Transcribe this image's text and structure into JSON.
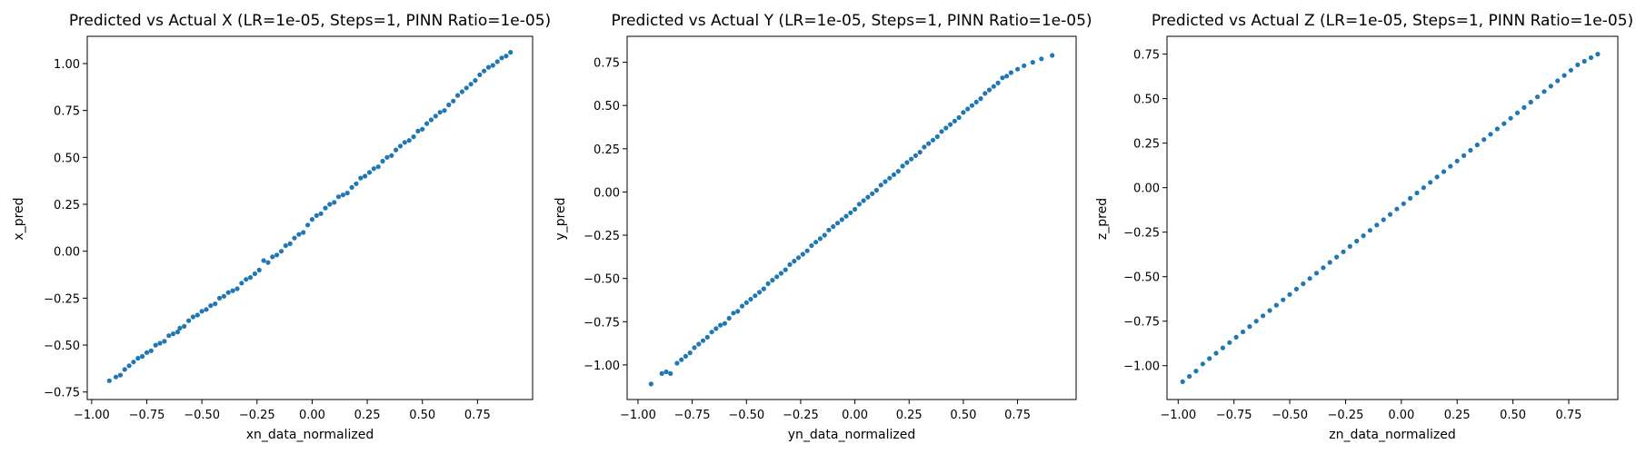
{
  "figure": {
    "panels": [
      {
        "title": "Predicted vs Actual X (LR=1e-05, Steps=1, PINN Ratio=1e-05)",
        "xlabel": "xn_data_normalized",
        "ylabel": "x_pred",
        "xlim": [
          -1.02,
          1.0
        ],
        "ylim": [
          -0.79,
          1.145
        ],
        "xticks": [
          -1.0,
          -0.75,
          -0.5,
          -0.25,
          0.0,
          0.25,
          0.5,
          0.75
        ],
        "yticks": [
          -0.75,
          -0.5,
          -0.25,
          0.0,
          0.25,
          0.5,
          0.75,
          1.0
        ]
      },
      {
        "title": "Predicted vs Actual Y (LR=1e-05, Steps=1, PINN Ratio=1e-05)",
        "xlabel": "yn_data_normalized",
        "ylabel": "y_pred",
        "xlim": [
          -1.05,
          1.02
        ],
        "ylim": [
          -1.2,
          0.9
        ],
        "xticks": [
          -1.0,
          -0.75,
          -0.5,
          -0.25,
          0.0,
          0.25,
          0.5,
          0.75
        ],
        "yticks": [
          -1.0,
          -0.75,
          -0.5,
          -0.25,
          0.0,
          0.25,
          0.5,
          0.75
        ]
      },
      {
        "title": "Predicted vs Actual Z (LR=1e-05, Steps=1, PINN Ratio=1e-05)",
        "xlabel": "zn_data_normalized",
        "ylabel": "z_pred",
        "xlim": [
          -1.05,
          0.97
        ],
        "ylim": [
          -1.19,
          0.85
        ],
        "xticks": [
          -1.0,
          -0.75,
          -0.5,
          -0.25,
          0.0,
          0.25,
          0.5,
          0.75
        ],
        "yticks": [
          -1.0,
          -0.75,
          -0.5,
          -0.25,
          0.0,
          0.25,
          0.5,
          0.75
        ]
      }
    ]
  },
  "chart_data": [
    {
      "type": "scatter",
      "title": "Predicted vs Actual X (LR=1e-05, Steps=1, PINN Ratio=1e-05)",
      "xlabel": "xn_data_normalized",
      "ylabel": "x_pred",
      "xlim": [
        -1.02,
        1.0
      ],
      "ylim": [
        -0.79,
        1.145
      ],
      "grid": false,
      "color": "#1f77b4",
      "points": [
        [
          -0.92,
          -0.69
        ],
        [
          -0.89,
          -0.67
        ],
        [
          -0.87,
          -0.66
        ],
        [
          -0.85,
          -0.63
        ],
        [
          -0.83,
          -0.61
        ],
        [
          -0.81,
          -0.59
        ],
        [
          -0.79,
          -0.57
        ],
        [
          -0.77,
          -0.56
        ],
        [
          -0.75,
          -0.54
        ],
        [
          -0.73,
          -0.53
        ],
        [
          -0.71,
          -0.5
        ],
        [
          -0.69,
          -0.49
        ],
        [
          -0.67,
          -0.48
        ],
        [
          -0.65,
          -0.45
        ],
        [
          -0.63,
          -0.44
        ],
        [
          -0.61,
          -0.43
        ],
        [
          -0.6,
          -0.41
        ],
        [
          -0.58,
          -0.4
        ],
        [
          -0.56,
          -0.37
        ],
        [
          -0.54,
          -0.35
        ],
        [
          -0.52,
          -0.34
        ],
        [
          -0.5,
          -0.32
        ],
        [
          -0.48,
          -0.31
        ],
        [
          -0.46,
          -0.29
        ],
        [
          -0.44,
          -0.28
        ],
        [
          -0.42,
          -0.25
        ],
        [
          -0.4,
          -0.24
        ],
        [
          -0.38,
          -0.22
        ],
        [
          -0.36,
          -0.21
        ],
        [
          -0.34,
          -0.2
        ],
        [
          -0.32,
          -0.17
        ],
        [
          -0.3,
          -0.15
        ],
        [
          -0.28,
          -0.14
        ],
        [
          -0.26,
          -0.12
        ],
        [
          -0.24,
          -0.1
        ],
        [
          -0.22,
          -0.05
        ],
        [
          -0.2,
          -0.06
        ],
        [
          -0.18,
          -0.03
        ],
        [
          -0.16,
          -0.02
        ],
        [
          -0.14,
          0.0
        ],
        [
          -0.12,
          0.03
        ],
        [
          -0.1,
          0.04
        ],
        [
          -0.08,
          0.07
        ],
        [
          -0.06,
          0.09
        ],
        [
          -0.04,
          0.1
        ],
        [
          -0.02,
          0.14
        ],
        [
          0.0,
          0.17
        ],
        [
          0.02,
          0.19
        ],
        [
          0.04,
          0.2
        ],
        [
          0.06,
          0.23
        ],
        [
          0.08,
          0.25
        ],
        [
          0.1,
          0.26
        ],
        [
          0.12,
          0.29
        ],
        [
          0.14,
          0.3
        ],
        [
          0.16,
          0.31
        ],
        [
          0.18,
          0.34
        ],
        [
          0.2,
          0.36
        ],
        [
          0.22,
          0.39
        ],
        [
          0.24,
          0.4
        ],
        [
          0.26,
          0.42
        ],
        [
          0.28,
          0.44
        ],
        [
          0.3,
          0.45
        ],
        [
          0.32,
          0.48
        ],
        [
          0.34,
          0.5
        ],
        [
          0.36,
          0.51
        ],
        [
          0.38,
          0.54
        ],
        [
          0.4,
          0.56
        ],
        [
          0.42,
          0.58
        ],
        [
          0.44,
          0.59
        ],
        [
          0.46,
          0.61
        ],
        [
          0.48,
          0.64
        ],
        [
          0.5,
          0.65
        ],
        [
          0.52,
          0.68
        ],
        [
          0.54,
          0.7
        ],
        [
          0.56,
          0.72
        ],
        [
          0.58,
          0.74
        ],
        [
          0.6,
          0.75
        ],
        [
          0.62,
          0.78
        ],
        [
          0.64,
          0.8
        ],
        [
          0.66,
          0.83
        ],
        [
          0.68,
          0.85
        ],
        [
          0.7,
          0.87
        ],
        [
          0.72,
          0.89
        ],
        [
          0.74,
          0.91
        ],
        [
          0.76,
          0.94
        ],
        [
          0.78,
          0.96
        ],
        [
          0.8,
          0.98
        ],
        [
          0.82,
          0.99
        ],
        [
          0.84,
          1.01
        ],
        [
          0.86,
          1.03
        ],
        [
          0.88,
          1.04
        ],
        [
          0.9,
          1.06
        ]
      ]
    },
    {
      "type": "scatter",
      "title": "Predicted vs Actual Y (LR=1e-05, Steps=1, PINN Ratio=1e-05)",
      "xlabel": "yn_data_normalized",
      "ylabel": "y_pred",
      "xlim": [
        -1.05,
        1.02
      ],
      "ylim": [
        -1.2,
        0.9
      ],
      "grid": false,
      "color": "#1f77b4",
      "points": [
        [
          -0.94,
          -1.11
        ],
        [
          -0.89,
          -1.05
        ],
        [
          -0.87,
          -1.04
        ],
        [
          -0.85,
          -1.05
        ],
        [
          -0.82,
          -0.99
        ],
        [
          -0.8,
          -0.97
        ],
        [
          -0.78,
          -0.95
        ],
        [
          -0.76,
          -0.93
        ],
        [
          -0.74,
          -0.9
        ],
        [
          -0.72,
          -0.88
        ],
        [
          -0.7,
          -0.86
        ],
        [
          -0.68,
          -0.84
        ],
        [
          -0.66,
          -0.81
        ],
        [
          -0.64,
          -0.79
        ],
        [
          -0.62,
          -0.77
        ],
        [
          -0.6,
          -0.76
        ],
        [
          -0.58,
          -0.73
        ],
        [
          -0.56,
          -0.7
        ],
        [
          -0.54,
          -0.69
        ],
        [
          -0.52,
          -0.66
        ],
        [
          -0.5,
          -0.64
        ],
        [
          -0.48,
          -0.62
        ],
        [
          -0.46,
          -0.6
        ],
        [
          -0.44,
          -0.58
        ],
        [
          -0.42,
          -0.56
        ],
        [
          -0.4,
          -0.53
        ],
        [
          -0.38,
          -0.51
        ],
        [
          -0.36,
          -0.49
        ],
        [
          -0.34,
          -0.47
        ],
        [
          -0.32,
          -0.45
        ],
        [
          -0.3,
          -0.42
        ],
        [
          -0.28,
          -0.4
        ],
        [
          -0.26,
          -0.38
        ],
        [
          -0.24,
          -0.36
        ],
        [
          -0.22,
          -0.34
        ],
        [
          -0.2,
          -0.31
        ],
        [
          -0.18,
          -0.29
        ],
        [
          -0.16,
          -0.27
        ],
        [
          -0.14,
          -0.25
        ],
        [
          -0.12,
          -0.22
        ],
        [
          -0.1,
          -0.2
        ],
        [
          -0.08,
          -0.18
        ],
        [
          -0.06,
          -0.16
        ],
        [
          -0.04,
          -0.14
        ],
        [
          -0.02,
          -0.12
        ],
        [
          0.0,
          -0.1
        ],
        [
          0.02,
          -0.07
        ],
        [
          0.04,
          -0.05
        ],
        [
          0.06,
          -0.03
        ],
        [
          0.08,
          -0.01
        ],
        [
          0.1,
          0.01
        ],
        [
          0.12,
          0.04
        ],
        [
          0.14,
          0.06
        ],
        [
          0.16,
          0.08
        ],
        [
          0.18,
          0.1
        ],
        [
          0.2,
          0.12
        ],
        [
          0.22,
          0.15
        ],
        [
          0.24,
          0.17
        ],
        [
          0.26,
          0.19
        ],
        [
          0.28,
          0.21
        ],
        [
          0.3,
          0.23
        ],
        [
          0.32,
          0.26
        ],
        [
          0.34,
          0.28
        ],
        [
          0.36,
          0.3
        ],
        [
          0.38,
          0.32
        ],
        [
          0.4,
          0.35
        ],
        [
          0.42,
          0.37
        ],
        [
          0.44,
          0.39
        ],
        [
          0.46,
          0.41
        ],
        [
          0.48,
          0.43
        ],
        [
          0.5,
          0.46
        ],
        [
          0.52,
          0.48
        ],
        [
          0.54,
          0.5
        ],
        [
          0.56,
          0.52
        ],
        [
          0.58,
          0.54
        ],
        [
          0.6,
          0.57
        ],
        [
          0.62,
          0.59
        ],
        [
          0.64,
          0.61
        ],
        [
          0.66,
          0.63
        ],
        [
          0.68,
          0.66
        ],
        [
          0.7,
          0.67
        ],
        [
          0.72,
          0.69
        ],
        [
          0.75,
          0.71
        ],
        [
          0.78,
          0.73
        ],
        [
          0.82,
          0.75
        ],
        [
          0.86,
          0.77
        ],
        [
          0.91,
          0.79
        ]
      ]
    },
    {
      "type": "scatter",
      "title": "Predicted vs Actual Z (LR=1e-05, Steps=1, PINN Ratio=1e-05)",
      "xlabel": "zn_data_normalized",
      "ylabel": "z_pred",
      "xlim": [
        -1.05,
        0.97
      ],
      "ylim": [
        -1.19,
        0.85
      ],
      "grid": false,
      "color": "#1f77b4",
      "points": [
        [
          -0.98,
          -1.09
        ],
        [
          -0.95,
          -1.06
        ],
        [
          -0.92,
          -1.03
        ],
        [
          -0.89,
          -0.99
        ],
        [
          -0.86,
          -0.96
        ],
        [
          -0.83,
          -0.93
        ],
        [
          -0.8,
          -0.9
        ],
        [
          -0.77,
          -0.87
        ],
        [
          -0.74,
          -0.84
        ],
        [
          -0.71,
          -0.81
        ],
        [
          -0.68,
          -0.78
        ],
        [
          -0.65,
          -0.75
        ],
        [
          -0.62,
          -0.72
        ],
        [
          -0.59,
          -0.69
        ],
        [
          -0.56,
          -0.66
        ],
        [
          -0.53,
          -0.63
        ],
        [
          -0.5,
          -0.6
        ],
        [
          -0.47,
          -0.57
        ],
        [
          -0.44,
          -0.54
        ],
        [
          -0.41,
          -0.51
        ],
        [
          -0.38,
          -0.48
        ],
        [
          -0.35,
          -0.45
        ],
        [
          -0.32,
          -0.42
        ],
        [
          -0.29,
          -0.39
        ],
        [
          -0.26,
          -0.36
        ],
        [
          -0.23,
          -0.33
        ],
        [
          -0.2,
          -0.3
        ],
        [
          -0.17,
          -0.27
        ],
        [
          -0.14,
          -0.24
        ],
        [
          -0.11,
          -0.21
        ],
        [
          -0.08,
          -0.18
        ],
        [
          -0.05,
          -0.15
        ],
        [
          -0.02,
          -0.12
        ],
        [
          0.01,
          -0.09
        ],
        [
          0.04,
          -0.06
        ],
        [
          0.07,
          -0.03
        ],
        [
          0.1,
          0.0
        ],
        [
          0.13,
          0.03
        ],
        [
          0.16,
          0.06
        ],
        [
          0.19,
          0.09
        ],
        [
          0.22,
          0.12
        ],
        [
          0.25,
          0.15
        ],
        [
          0.28,
          0.18
        ],
        [
          0.31,
          0.21
        ],
        [
          0.34,
          0.24
        ],
        [
          0.37,
          0.27
        ],
        [
          0.4,
          0.3
        ],
        [
          0.43,
          0.33
        ],
        [
          0.46,
          0.36
        ],
        [
          0.49,
          0.39
        ],
        [
          0.52,
          0.42
        ],
        [
          0.55,
          0.45
        ],
        [
          0.58,
          0.48
        ],
        [
          0.61,
          0.51
        ],
        [
          0.64,
          0.54
        ],
        [
          0.67,
          0.57
        ],
        [
          0.7,
          0.6
        ],
        [
          0.73,
          0.63
        ],
        [
          0.76,
          0.66
        ],
        [
          0.79,
          0.69
        ],
        [
          0.82,
          0.71
        ],
        [
          0.85,
          0.73
        ],
        [
          0.88,
          0.75
        ]
      ]
    }
  ]
}
